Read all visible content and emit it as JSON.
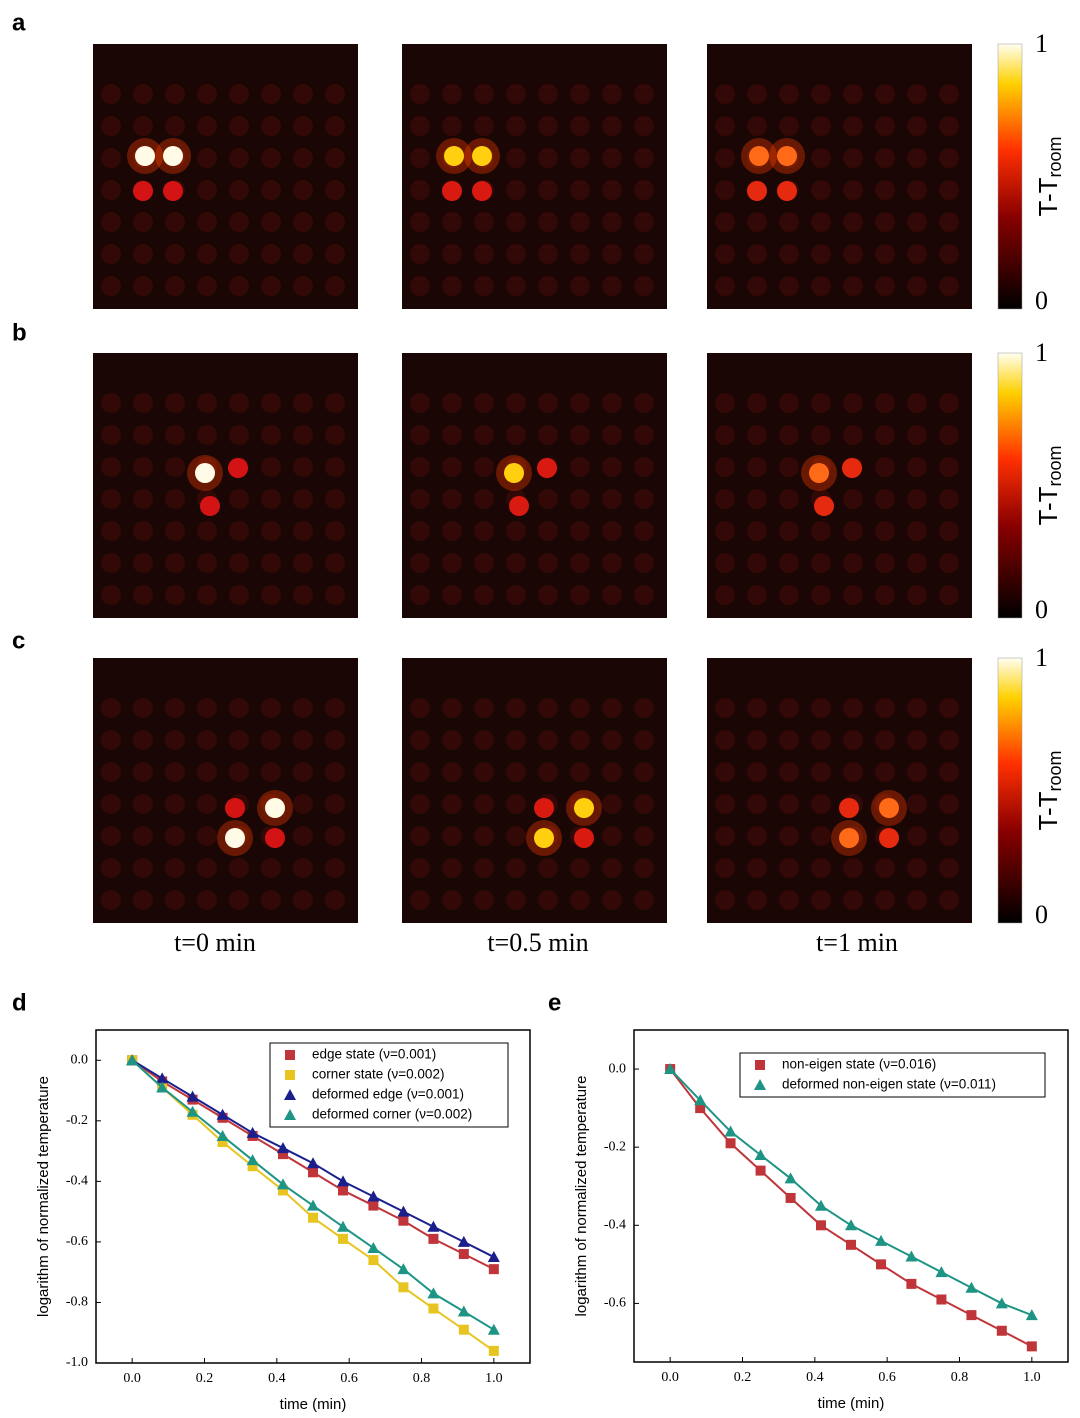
{
  "panel_labels": [
    "a",
    "b",
    "c",
    "d",
    "e"
  ],
  "heatmaps": {
    "time_labels": [
      "t=0 min",
      "t=0.5 min",
      "t=1 min"
    ],
    "colorbar": {
      "ticks": [
        0,
        1
      ],
      "label_main": "T-T",
      "label_sub": "room"
    }
  },
  "chart_data": [
    {
      "type": "line",
      "xlabel": "time (min)",
      "ylabel": "logarithm of normalized temperature",
      "x": [
        0,
        0.083,
        0.167,
        0.25,
        0.333,
        0.417,
        0.5,
        0.583,
        0.667,
        0.75,
        0.833,
        0.917,
        1
      ],
      "xlim": [
        -0.1,
        1.1
      ],
      "ylim": [
        -1.0,
        0.1
      ],
      "xticks": [
        {
          "value": 0,
          "label": "0.0"
        },
        0.2,
        0.4,
        0.6,
        0.8,
        {
          "value": 1,
          "label": "1.0"
        }
      ],
      "yticks": [
        {
          "value": 0,
          "label": "0.0"
        },
        -0.2,
        -0.4,
        -0.6,
        -0.8,
        {
          "value": -1,
          "label": "-1.0"
        }
      ],
      "legend": "upper right",
      "series": [
        {
          "name": "edge state (ν=0.001)",
          "color": "#c0353a",
          "marker": "square",
          "values": [
            0,
            -0.07,
            -0.13,
            -0.19,
            -0.25,
            -0.31,
            -0.37,
            -0.43,
            -0.48,
            -0.53,
            -0.59,
            -0.64,
            -0.69
          ]
        },
        {
          "name": "corner state (ν=0.002)",
          "color": "#e8c420",
          "marker": "square",
          "values": [
            0,
            -0.09,
            -0.18,
            -0.27,
            -0.35,
            -0.43,
            -0.52,
            -0.59,
            -0.66,
            -0.75,
            -0.82,
            -0.89,
            -0.96
          ]
        },
        {
          "name": "deformed edge (ν=0.001)",
          "color": "#1a1f8c",
          "marker": "triangle",
          "values": [
            0,
            -0.06,
            -0.12,
            -0.18,
            -0.24,
            -0.29,
            -0.34,
            -0.4,
            -0.45,
            -0.5,
            -0.55,
            -0.6,
            -0.65
          ]
        },
        {
          "name": "deformed corner (ν=0.002)",
          "color": "#1e9485",
          "marker": "triangle",
          "values": [
            0,
            -0.09,
            -0.17,
            -0.25,
            -0.33,
            -0.41,
            -0.48,
            -0.55,
            -0.62,
            -0.69,
            -0.77,
            -0.83,
            -0.89
          ]
        }
      ]
    },
    {
      "type": "line",
      "xlabel": "time (min)",
      "ylabel": "logarithm of normalized temperature",
      "x": [
        0,
        0.083,
        0.167,
        0.25,
        0.333,
        0.417,
        0.5,
        0.583,
        0.667,
        0.75,
        0.833,
        0.917,
        1
      ],
      "xlim": [
        -0.1,
        1.1
      ],
      "ylim": [
        -0.75,
        0.1
      ],
      "xticks": [
        {
          "value": 0,
          "label": "0.0"
        },
        0.2,
        0.4,
        0.6,
        0.8,
        {
          "value": 1,
          "label": "1.0"
        }
      ],
      "yticks": [
        {
          "value": 0,
          "label": "0.0"
        },
        -0.2,
        -0.4,
        -0.6
      ],
      "legend": "upper right",
      "series": [
        {
          "name": "non-eigen state (ν=0.016)",
          "color": "#c0353a",
          "marker": "square",
          "values": [
            0,
            -0.1,
            -0.19,
            -0.26,
            -0.33,
            -0.4,
            -0.45,
            -0.5,
            -0.55,
            -0.59,
            -0.63,
            -0.67,
            -0.71
          ]
        },
        {
          "name": "deformed non-eigen state (ν=0.011)",
          "color": "#1e9485",
          "marker": "triangle",
          "values": [
            0,
            -0.08,
            -0.16,
            -0.22,
            -0.28,
            -0.35,
            -0.4,
            -0.44,
            -0.48,
            -0.52,
            -0.56,
            -0.6,
            -0.63
          ]
        }
      ]
    }
  ]
}
